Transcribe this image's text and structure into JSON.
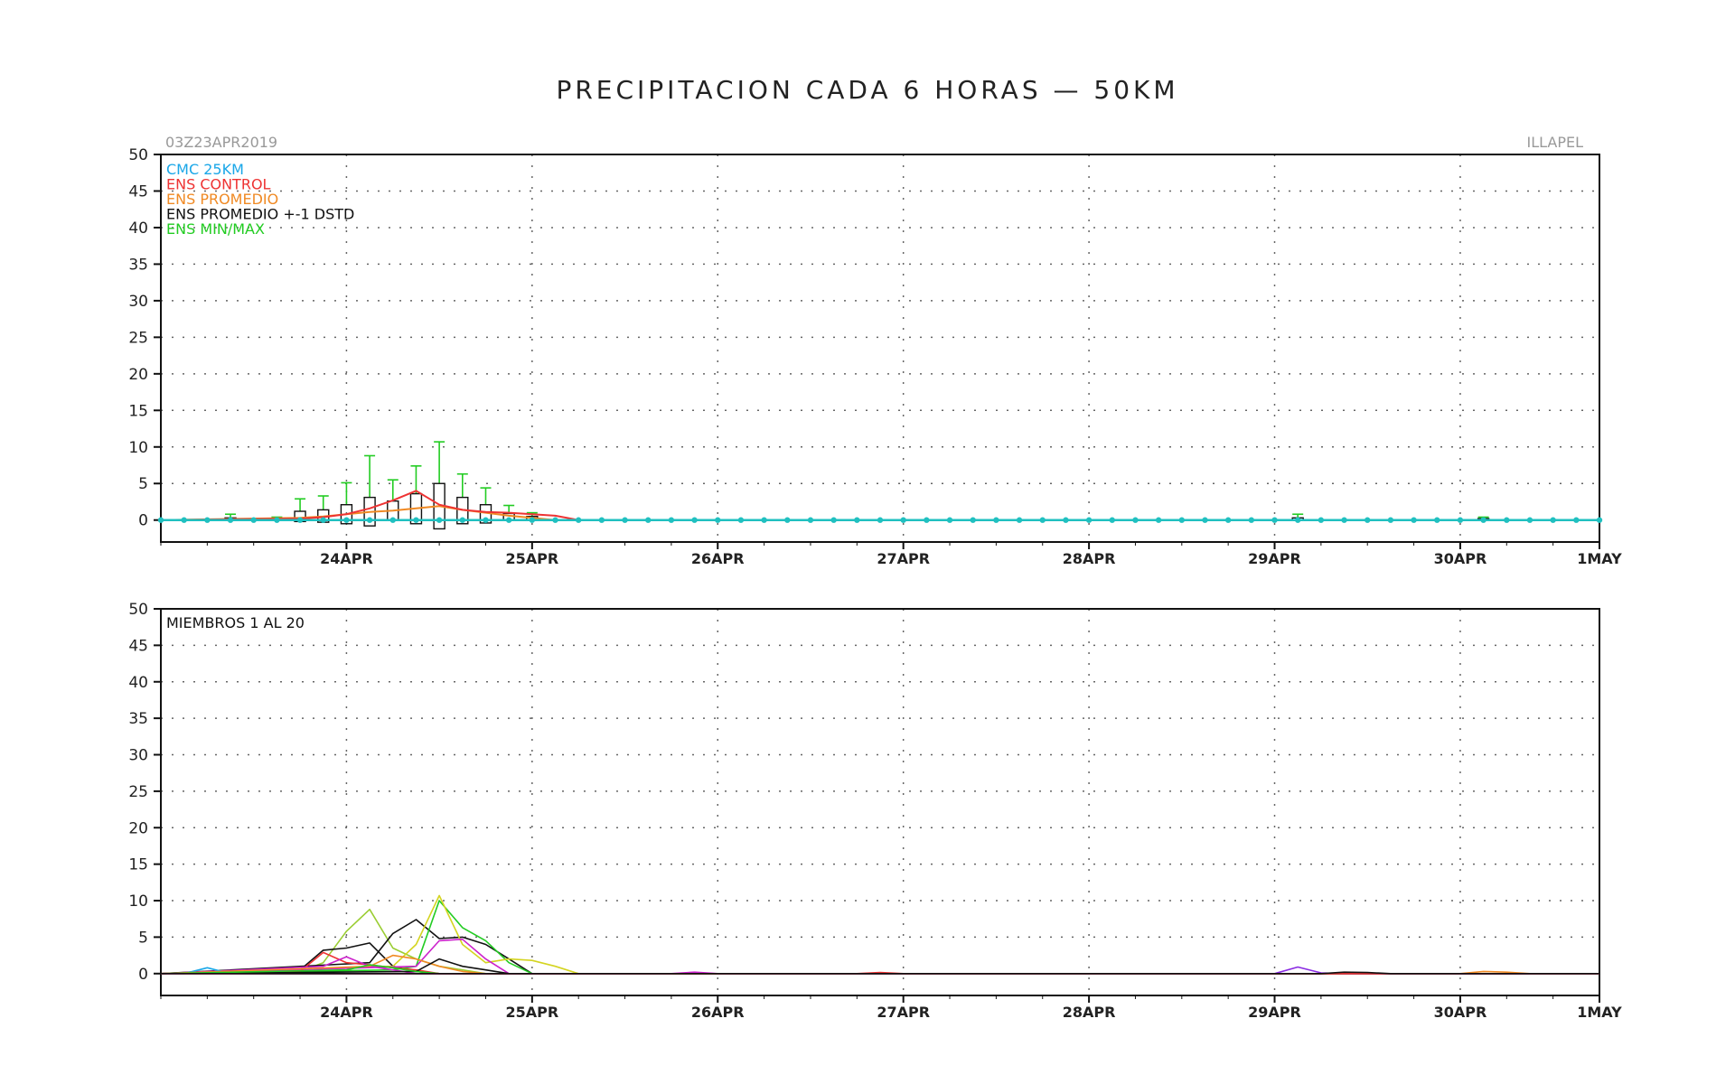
{
  "title": "PRECIPITACION CADA 6 HORAS — 50KM",
  "run_label": "03Z23APR2019",
  "station": "ILLAPEL",
  "colors": {
    "cmc": "#1aa7e8",
    "control": "#ee3333",
    "mean": "#f08a24",
    "std": "#111111",
    "minmax": "#22cc22",
    "marker": "#20c0c0"
  },
  "chart_data": [
    {
      "type": "box-line",
      "ylim": [
        -3,
        50
      ],
      "yticks": [
        0,
        5,
        10,
        15,
        20,
        25,
        30,
        35,
        40,
        45,
        50
      ],
      "xlim": [
        0,
        46.5
      ],
      "xticks": [
        {
          "x": 6,
          "label": "24APR"
        },
        {
          "x": 12,
          "label": "25APR"
        },
        {
          "x": 18,
          "label": "26APR"
        },
        {
          "x": 24,
          "label": "27APR"
        },
        {
          "x": 30,
          "label": "28APR"
        },
        {
          "x": 36,
          "label": "29APR"
        },
        {
          "x": 42,
          "label": "30APR"
        },
        {
          "x": 46.5,
          "label": "1MAY"
        }
      ],
      "grid": true,
      "legend": [
        {
          "label": "CMC 25KM",
          "color_key": "cmc"
        },
        {
          "label": "ENS CONTROL",
          "color_key": "control"
        },
        {
          "label": "ENS PROMEDIO",
          "color_key": "mean"
        },
        {
          "label": "ENS PROMEDIO +-1 DSTD",
          "color_key": "std"
        },
        {
          "label": "ENS MIN/MAX",
          "color_key": "minmax"
        }
      ],
      "legend_position": "top-left",
      "cmc_x": [
        0,
        0.75,
        1.5,
        2.25,
        3,
        3.75,
        4.5,
        5.25,
        6,
        6.75,
        7.5,
        8.25,
        9,
        9.75,
        10.5,
        11.25,
        12,
        12.75,
        13.5,
        14.25,
        15,
        15.75,
        16.5,
        17.25,
        18,
        18.75,
        19.5,
        20.25,
        21,
        21.75,
        22.5,
        23.25,
        24,
        24.75,
        25.5,
        26.25,
        27,
        27.75,
        28.5,
        29.25,
        30,
        30.75,
        31.5,
        32.25,
        33,
        33.75,
        34.5,
        35.25,
        36,
        36.75,
        37.5,
        38.25,
        39,
        39.75,
        40.5,
        41.25,
        42,
        42.75,
        43.5,
        44.25,
        45,
        45.75,
        46.5
      ],
      "cmc_value": 0,
      "boxes": [
        {
          "x": 2.25,
          "low": 0,
          "high": 0.3,
          "max": 0.8
        },
        {
          "x": 3.75,
          "low": 0,
          "high": 0.2,
          "max": 0.4
        },
        {
          "x": 4.5,
          "low": -0.2,
          "high": 1.2,
          "max": 2.9
        },
        {
          "x": 5.25,
          "low": -0.3,
          "high": 1.4,
          "max": 3.3
        },
        {
          "x": 6,
          "low": -0.5,
          "high": 2.1,
          "max": 5.1
        },
        {
          "x": 6.75,
          "low": -0.8,
          "high": 3.1,
          "max": 8.8
        },
        {
          "x": 7.5,
          "low": 0,
          "high": 2.6,
          "max": 5.5
        },
        {
          "x": 8.25,
          "low": -0.5,
          "high": 3.6,
          "max": 7.4
        },
        {
          "x": 9,
          "low": -1.2,
          "high": 5.0,
          "max": 10.7
        },
        {
          "x": 9.75,
          "low": -0.5,
          "high": 3.1,
          "max": 6.3
        },
        {
          "x": 10.5,
          "low": -0.4,
          "high": 2.1,
          "max": 4.4
        },
        {
          "x": 11.25,
          "low": 0,
          "high": 0.9,
          "max": 2.0
        },
        {
          "x": 12,
          "low": 0,
          "high": 0.5,
          "max": 1.0
        },
        {
          "x": 36.75,
          "low": 0,
          "high": 0.3,
          "max": 0.8
        },
        {
          "x": 42.75,
          "low": 0,
          "high": 0.2,
          "max": 0.4
        }
      ],
      "control": {
        "x": [
          0,
          4.5,
          5.25,
          6,
          6.75,
          7.5,
          8.25,
          9,
          9.75,
          10.5,
          11.25,
          12,
          12.75,
          13.5
        ],
        "y": [
          0,
          0.2,
          0.4,
          0.8,
          1.6,
          2.7,
          4.0,
          2.1,
          1.4,
          1.1,
          1.0,
          0.8,
          0.6,
          0
        ]
      },
      "mean": {
        "x": [
          0,
          4.5,
          5.25,
          6,
          6.75,
          7.5,
          8.25,
          9,
          9.75,
          10.5,
          11.25,
          12,
          12.75
        ],
        "y": [
          0,
          0.3,
          0.5,
          0.8,
          1.1,
          1.3,
          1.6,
          1.9,
          1.4,
          1.0,
          0.6,
          0.3,
          0
        ]
      }
    },
    {
      "type": "line",
      "annotation": "MIEMBROS 1 AL 20",
      "ylim": [
        -3,
        50
      ],
      "yticks": [
        0,
        5,
        10,
        15,
        20,
        25,
        30,
        35,
        40,
        45,
        50
      ],
      "xlim": [
        0,
        46.5
      ],
      "grid": true,
      "series": [
        {
          "color": "#9acd32",
          "x": [
            0,
            4.5,
            5.25,
            6,
            6.75,
            7.5,
            8.25,
            9,
            9.75,
            10.5
          ],
          "y": [
            0,
            0.3,
            1.5,
            5.8,
            8.8,
            3.5,
            2.0,
            1.0,
            0.5,
            0
          ]
        },
        {
          "color": "#111111",
          "x": [
            0,
            4.5,
            5.25,
            6,
            6.75,
            7.5,
            8.25,
            9,
            9.75,
            10.5,
            11.25
          ],
          "y": [
            0,
            0.5,
            3.2,
            3.5,
            4.2,
            1.0,
            0.3,
            0,
            0,
            0,
            0
          ]
        },
        {
          "color": "#111111",
          "x": [
            0,
            6.75,
            7.5,
            8.25,
            9,
            9.75,
            10.5,
            11.25,
            12
          ],
          "y": [
            0,
            1.5,
            5.5,
            7.4,
            4.8,
            5.0,
            4.0,
            2.0,
            0
          ]
        },
        {
          "color": "#22cc22",
          "x": [
            0,
            7.5,
            8.25,
            9,
            9.75,
            10.5,
            11.25,
            12
          ],
          "y": [
            0,
            0.5,
            1.0,
            10.0,
            6.3,
            4.5,
            1.5,
            0
          ]
        },
        {
          "color": "#d4d420",
          "x": [
            0,
            7.5,
            8.25,
            9,
            9.75,
            10.5,
            11.25,
            12,
            12.75,
            13.5
          ],
          "y": [
            0,
            1.0,
            4.0,
            10.7,
            4.0,
            1.5,
            2.0,
            1.8,
            1.0,
            0
          ]
        },
        {
          "color": "#cc22cc",
          "x": [
            0,
            8.25,
            9,
            9.75,
            10.5,
            11.25
          ],
          "y": [
            0,
            1.0,
            4.5,
            4.7,
            2.0,
            0
          ]
        },
        {
          "color": "#ee3333",
          "x": [
            0,
            4.5,
            5.25,
            6,
            6.75,
            7.5,
            8.25,
            9
          ],
          "y": [
            0,
            0.3,
            2.9,
            1.5,
            1.2,
            0.8,
            0.5,
            0
          ]
        },
        {
          "color": "#cc22cc",
          "x": [
            0,
            5.25,
            6,
            6.75,
            7.5,
            8.25
          ],
          "y": [
            0,
            1.0,
            2.3,
            1.0,
            0.5,
            0
          ]
        },
        {
          "color": "#1aa7e8",
          "x": [
            0,
            0.75,
            1.5,
            2.25,
            3
          ],
          "y": [
            0,
            0,
            0.8,
            0,
            0
          ]
        },
        {
          "color": "#f08a24",
          "x": [
            0,
            6.75,
            7.5,
            8.25,
            9,
            9.75,
            10.5
          ],
          "y": [
            0,
            1.0,
            2.5,
            2.0,
            1.0,
            0.3,
            0
          ]
        },
        {
          "color": "#111111",
          "x": [
            0,
            8.25,
            9,
            9.75,
            10.5,
            11.25
          ],
          "y": [
            0,
            0.3,
            2.0,
            1.0,
            0.5,
            0
          ]
        },
        {
          "color": "#22cc22",
          "x": [
            0,
            6,
            6.75,
            7.5,
            8.25,
            9
          ],
          "y": [
            0,
            0.5,
            1.2,
            0.8,
            0.3,
            0
          ]
        },
        {
          "color": "#8a2be2",
          "x": [
            0,
            36,
            36.75,
            37.5,
            38.25
          ],
          "y": [
            0,
            0,
            0.9,
            0.1,
            0
          ]
        },
        {
          "color": "#f08a24",
          "x": [
            0,
            42,
            42.75,
            43.5,
            44.25
          ],
          "y": [
            0,
            0,
            0.3,
            0.2,
            0
          ]
        },
        {
          "color": "#cc22cc",
          "x": [
            0,
            16.5,
            17.25,
            18
          ],
          "y": [
            0,
            0,
            0.2,
            0
          ]
        },
        {
          "color": "#ee3333",
          "x": [
            0,
            22.5,
            23.25,
            24
          ],
          "y": [
            0,
            0,
            0.15,
            0
          ]
        },
        {
          "color": "#111111",
          "x": [
            0,
            37.5,
            38.25,
            39,
            39.75
          ],
          "y": [
            0,
            0,
            0.2,
            0.15,
            0
          ]
        }
      ]
    }
  ]
}
